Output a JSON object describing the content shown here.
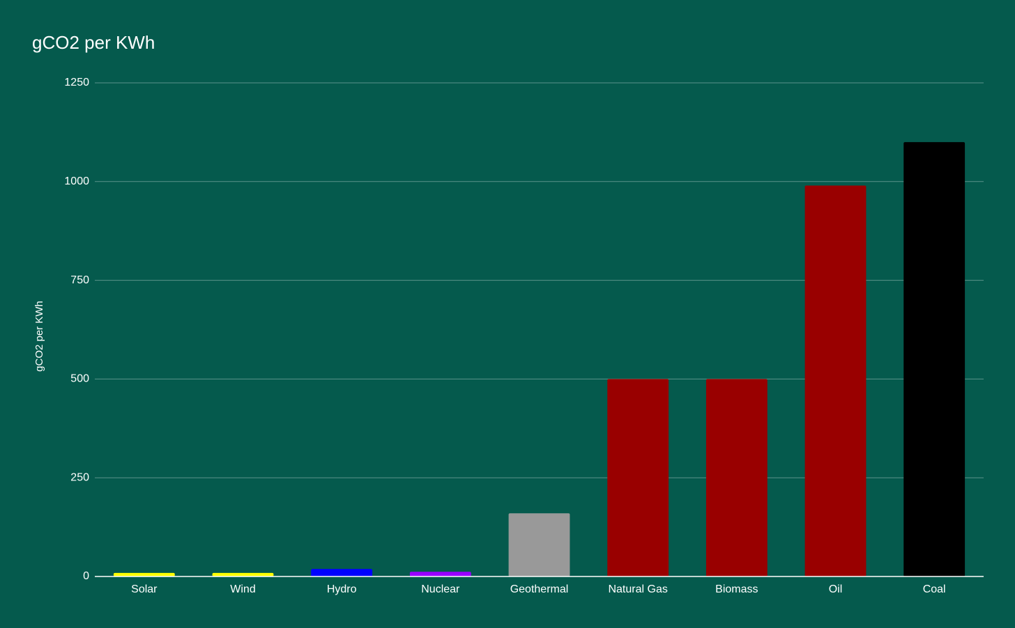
{
  "chart_data": {
    "type": "bar",
    "title": "gCO2 per KWh",
    "y_label": "gCO2 per KWh",
    "categories": [
      "Solar",
      "Wind",
      "Hydro",
      "Nuclear",
      "Geothermal",
      "Natural Gas",
      "Biomass",
      "Oil",
      "Coal"
    ],
    "values": [
      9,
      9,
      19,
      12,
      160,
      500,
      500,
      990,
      1100
    ],
    "colors": [
      "#ffff00",
      "#ffff00",
      "#0000ff",
      "#9900ff",
      "#999999",
      "#990000",
      "#990000",
      "#990000",
      "#000000"
    ],
    "ylim": [
      0,
      1250
    ],
    "yticks": [
      0,
      250,
      500,
      750,
      1000,
      1250
    ],
    "grid": true
  }
}
